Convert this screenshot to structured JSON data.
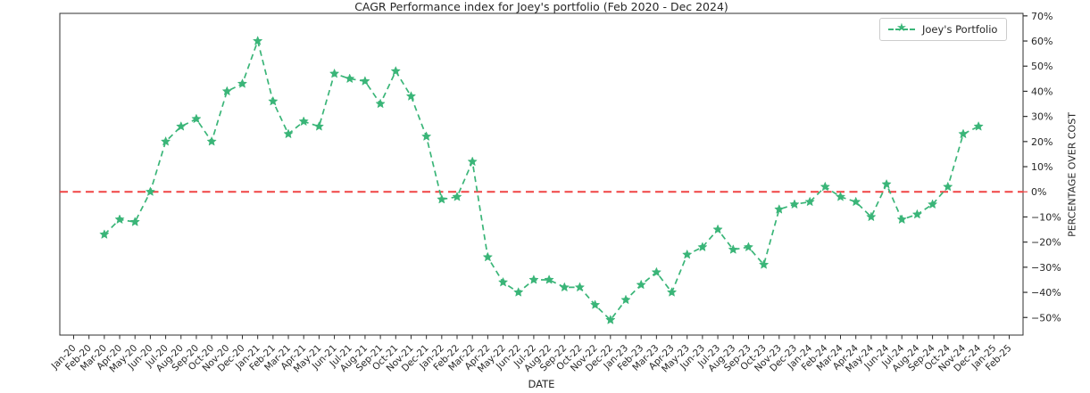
{
  "title": "CAGR Performance index for Joey's portfolio (Feb 2020 - Dec 2024)",
  "colors": {
    "series": "#3ab578",
    "zero_line": "#f04343",
    "axis": "#2f2f2f",
    "text": "#262626",
    "legend_border": "#cccccc"
  },
  "chart_data": {
    "type": "line",
    "title": "CAGR Performance index for Joey's portfolio (Feb 2020 - Dec 2024)",
    "xlabel": "DATE",
    "ylabel": "PERCENTAGE OVER COST",
    "grid": false,
    "legend_position": "upper right",
    "ylim": [
      -57,
      71
    ],
    "y_ticks_percent": [
      70,
      60,
      50,
      40,
      30,
      20,
      10,
      0,
      -10,
      -20,
      -30,
      -40,
      -50
    ],
    "y_tick_labels": [
      "70%",
      "60%",
      "50%",
      "40%",
      "30%",
      "20%",
      "10%",
      "0%",
      "−10%",
      "−20%",
      "−30%",
      "−40%",
      "−50%"
    ],
    "x_categories": [
      "Jan-20",
      "Feb-20",
      "Mar-20",
      "Apr-20",
      "May-20",
      "Jun-20",
      "Jul-20",
      "Aug-20",
      "Sep-20",
      "Oct-20",
      "Nov-20",
      "Dec-20",
      "Jan-21",
      "Feb-21",
      "Mar-21",
      "Apr-21",
      "May-21",
      "Jun-21",
      "Jul-21",
      "Aug-21",
      "Sep-21",
      "Oct-21",
      "Nov-21",
      "Dec-21",
      "Jan-22",
      "Feb-22",
      "Mar-22",
      "Apr-22",
      "May-22",
      "Jun-22",
      "Jul-22",
      "Aug-22",
      "Sep-22",
      "Oct-22",
      "Nov-22",
      "Dec-22",
      "Jan-23",
      "Feb-23",
      "Mar-23",
      "Apr-23",
      "May-23",
      "Jun-23",
      "Jul-23",
      "Aug-23",
      "Sep-23",
      "Oct-23",
      "Nov-23",
      "Dec-23",
      "Jan-24",
      "Feb-24",
      "Mar-24",
      "Apr-24",
      "May-24",
      "Jun-24",
      "Jul-24",
      "Aug-24",
      "Sep-24",
      "Oct-24",
      "Nov-24",
      "Dec-24",
      "Jan-25",
      "Feb-25"
    ],
    "zero_line": {
      "value": 0,
      "style": "dashed",
      "color": "#f04343"
    },
    "series": [
      {
        "name": "Joey's Portfolio",
        "color": "#3ab578",
        "style": "dashed",
        "marker": "star",
        "x_start": "Mar-20",
        "x_end": "Dec-24",
        "x_start_index": 2,
        "values_percent": [
          -17,
          -11,
          -12,
          0,
          20,
          26,
          29,
          20,
          40,
          43,
          60,
          36,
          23,
          28,
          26,
          47,
          45,
          44,
          35,
          48,
          38,
          22,
          -3,
          -2,
          12,
          -26,
          -36,
          -40,
          -35,
          -35,
          -38,
          -38,
          -45,
          -51,
          -43,
          -37,
          -32,
          -40,
          -25,
          -22,
          -15,
          -23,
          -22,
          -29,
          -7,
          -5,
          -4,
          2,
          -2,
          -4,
          -10,
          3,
          -11,
          -9,
          -5,
          2,
          23,
          26
        ]
      }
    ]
  }
}
